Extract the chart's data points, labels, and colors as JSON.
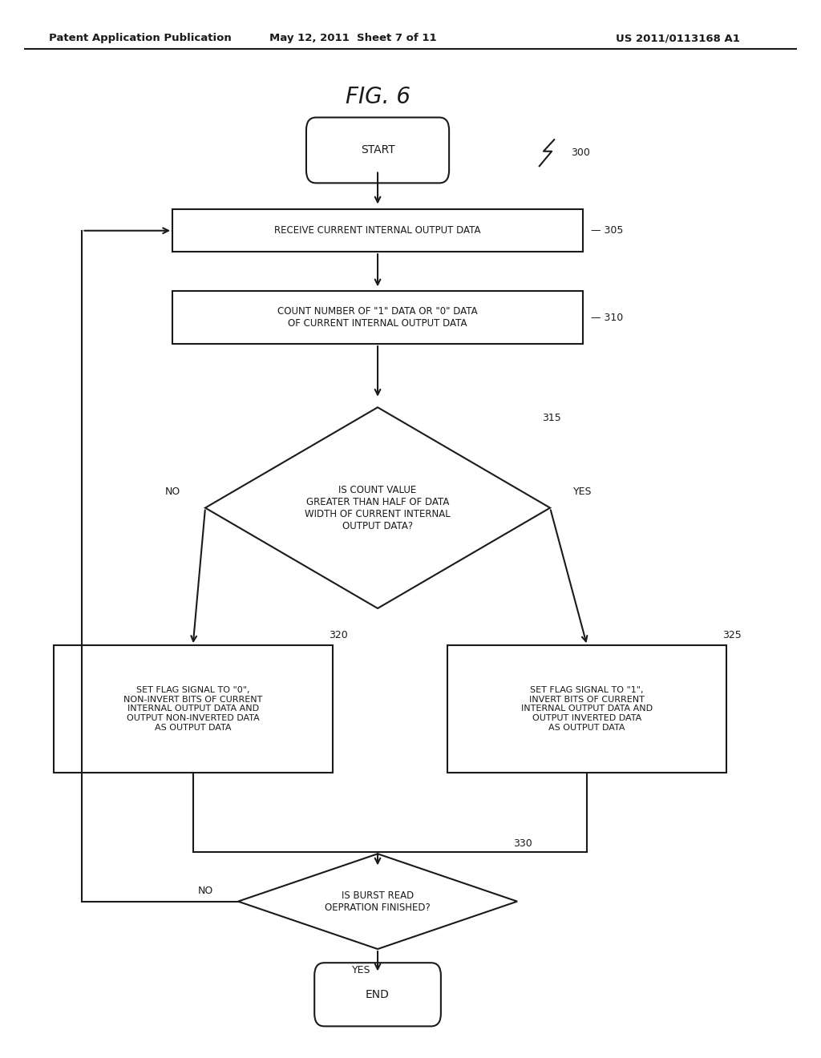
{
  "title": "FIG. 6",
  "header_left": "Patent Application Publication",
  "header_center": "May 12, 2011  Sheet 7 of 11",
  "header_right": "US 2011/0113168 A1",
  "bg_color": "#ffffff",
  "font_color": "#1a1a1a",
  "line_color": "#1a1a1a",
  "line_width": 1.5,
  "start_label": "START",
  "end_label": "END",
  "box305_label": "RECEIVE CURRENT INTERNAL OUTPUT DATA",
  "box305_ref": "305",
  "box310_label": "COUNT NUMBER OF \"1\" DATA OR \"0\" DATA\nOF CURRENT INTERNAL OUTPUT DATA",
  "box310_ref": "310",
  "diamond315_label": "IS COUNT VALUE\nGREATER THAN HALF OF DATA\nWIDTH OF CURRENT INTERNAL\nOUTPUT DATA?",
  "diamond315_ref": "315",
  "box320_label": "SET FLAG SIGNAL TO \"0\",\nNON-INVERT BITS OF CURRENT\nINTERNAL OUTPUT DATA AND\nOUTPUT NON-INVERTED DATA\nAS OUTPUT DATA",
  "box320_ref": "320",
  "box325_label": "SET FLAG SIGNAL TO \"1\",\nINVERT BITS OF CURRENT\nINTERNAL OUTPUT DATA AND\nOUTPUT INVERTED DATA\nAS OUTPUT DATA",
  "box325_ref": "325",
  "diamond330_label": "IS BURST READ\nOEPRATION FINISHED?",
  "diamond330_ref": "330",
  "ref300": "300",
  "no_label": "NO",
  "yes_label": "YES"
}
